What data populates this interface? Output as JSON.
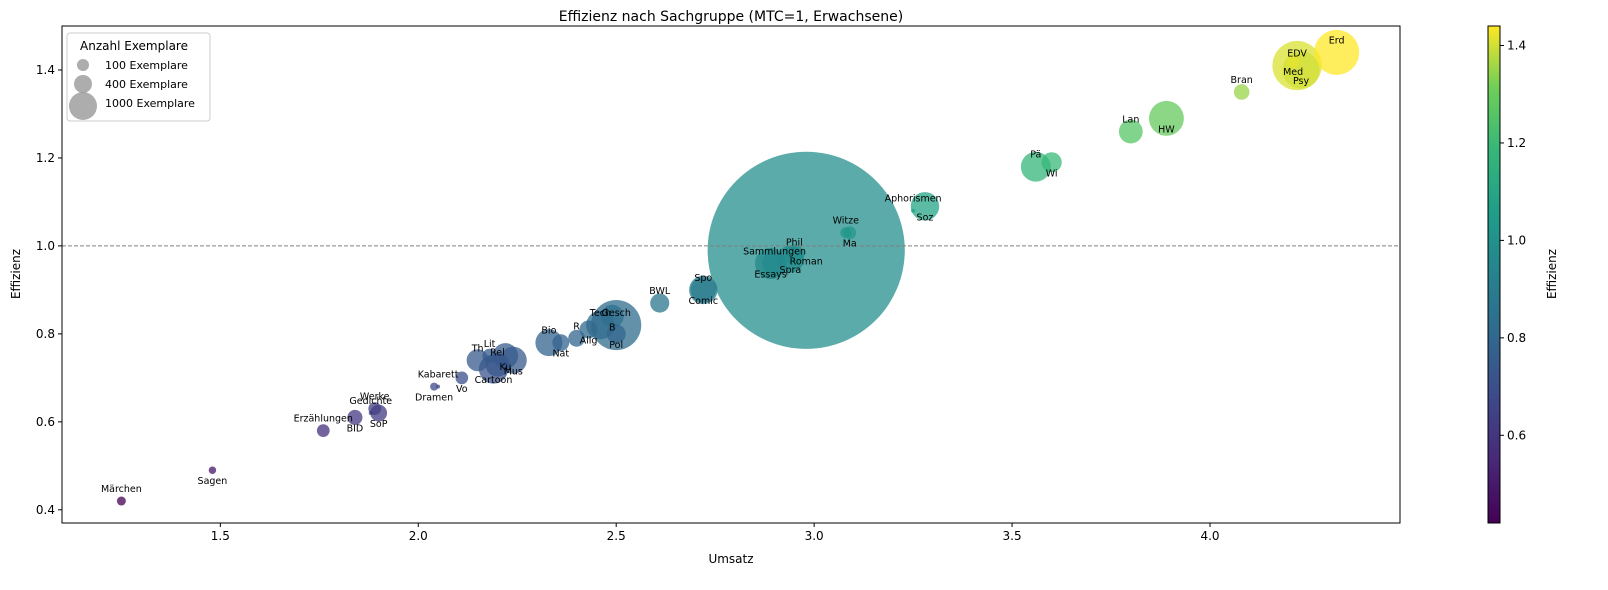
{
  "chart_data": {
    "type": "scatter",
    "title": "Effizienz nach Sachgruppe (MTC=1, Erwachsene)",
    "xlabel": "Umsatz",
    "ylabel": "Effizienz",
    "xlim": [
      1.1,
      4.48
    ],
    "ylim": [
      0.37,
      1.5
    ],
    "xticks": [
      "1.5",
      "2.0",
      "2.5",
      "3.0",
      "3.5",
      "4.0"
    ],
    "yticks": [
      "0.4",
      "0.6",
      "0.8",
      "1.0",
      "1.2",
      "1.4"
    ],
    "reference_line": {
      "y": 1.0,
      "style": "dashed",
      "color": "#808080"
    },
    "colorbar": {
      "label": "Effizienz",
      "range": [
        0.42,
        1.44
      ],
      "ticks": [
        "0.6",
        "0.8",
        "1.0",
        "1.2",
        "1.4"
      ],
      "colormap": "viridis"
    },
    "legend": {
      "title": "Anzahl Exemplare",
      "position": "top-left",
      "entries": [
        "100 Exemplare",
        "400 Exemplare",
        "1000 Exemplare"
      ]
    },
    "points": [
      {
        "label": "Märchen",
        "x": 1.25,
        "y": 0.42,
        "n": 100
      },
      {
        "label": "Sagen",
        "x": 1.48,
        "y": 0.49,
        "n": 70
      },
      {
        "label": "Erzählungen",
        "x": 1.76,
        "y": 0.58,
        "n": 200
      },
      {
        "label": "BID",
        "x": 1.84,
        "y": 0.61,
        "n": 280
      },
      {
        "label": "Werke",
        "x": 1.89,
        "y": 0.63,
        "n": 200
      },
      {
        "label": "SoP",
        "x": 1.9,
        "y": 0.62,
        "n": 350
      },
      {
        "label": "Gedichte",
        "x": 1.88,
        "y": 0.62,
        "n": 20
      },
      {
        "label": "Dramen",
        "x": 2.04,
        "y": 0.68,
        "n": 80
      },
      {
        "label": "Kabarett",
        "x": 2.05,
        "y": 0.68,
        "n": 20
      },
      {
        "label": "Vo",
        "x": 2.11,
        "y": 0.7,
        "n": 200
      },
      {
        "label": "Th",
        "x": 2.15,
        "y": 0.74,
        "n": 600
      },
      {
        "label": "Cartoon",
        "x": 2.19,
        "y": 0.72,
        "n": 1050
      },
      {
        "label": "Lit",
        "x": 2.18,
        "y": 0.75,
        "n": 250
      },
      {
        "label": "Ku",
        "x": 2.22,
        "y": 0.75,
        "n": 800
      },
      {
        "label": "Rel",
        "x": 2.2,
        "y": 0.73,
        "n": 700
      },
      {
        "label": "Mus",
        "x": 2.24,
        "y": 0.74,
        "n": 900
      },
      {
        "label": "Bio",
        "x": 2.33,
        "y": 0.78,
        "n": 900
      },
      {
        "label": "Nat",
        "x": 2.36,
        "y": 0.78,
        "n": 350
      },
      {
        "label": "R",
        "x": 2.4,
        "y": 0.79,
        "n": 350
      },
      {
        "label": "Allg",
        "x": 2.43,
        "y": 0.81,
        "n": 400
      },
      {
        "label": "Tech",
        "x": 2.46,
        "y": 0.82,
        "n": 1000
      },
      {
        "label": "B",
        "x": 2.49,
        "y": 0.84,
        "n": 650
      },
      {
        "label": "Gesch",
        "x": 2.5,
        "y": 0.82,
        "n": 3100
      },
      {
        "label": "Pol",
        "x": 2.5,
        "y": 0.8,
        "n": 450
      },
      {
        "label": "BWL",
        "x": 2.61,
        "y": 0.87,
        "n": 450
      },
      {
        "label": "Comic",
        "x": 2.72,
        "y": 0.9,
        "n": 800
      },
      {
        "label": "Spo",
        "x": 2.72,
        "y": 0.9,
        "n": 1000
      },
      {
        "label": "Essays",
        "x": 2.89,
        "y": 0.96,
        "n": 1200
      },
      {
        "label": "Sammlungen",
        "x": 2.9,
        "y": 0.96,
        "n": 750
      },
      {
        "label": "Spra",
        "x": 2.94,
        "y": 0.97,
        "n": 900
      },
      {
        "label": "Phil",
        "x": 2.95,
        "y": 0.98,
        "n": 500
      },
      {
        "label": "Roman",
        "x": 2.98,
        "y": 0.99,
        "n": 48000
      },
      {
        "label": "Witze",
        "x": 3.08,
        "y": 1.03,
        "n": 150
      },
      {
        "label": "Ma",
        "x": 3.09,
        "y": 1.03,
        "n": 200
      },
      {
        "label": "Aphorismen",
        "x": 3.25,
        "y": 1.08,
        "n": 20
      },
      {
        "label": "Soz",
        "x": 3.28,
        "y": 1.09,
        "n": 1000
      },
      {
        "label": "Pä",
        "x": 3.56,
        "y": 1.18,
        "n": 1100
      },
      {
        "label": "Wi",
        "x": 3.6,
        "y": 1.19,
        "n": 500
      },
      {
        "label": "Lan",
        "x": 3.8,
        "y": 1.26,
        "n": 700
      },
      {
        "label": "HW",
        "x": 3.89,
        "y": 1.29,
        "n": 1500
      },
      {
        "label": "Bran",
        "x": 4.08,
        "y": 1.35,
        "n": 300
      },
      {
        "label": "Med",
        "x": 4.21,
        "y": 1.42,
        "n": 200
      },
      {
        "label": "EDV",
        "x": 4.22,
        "y": 1.41,
        "n": 3000
      },
      {
        "label": "Psy",
        "x": 4.23,
        "y": 1.4,
        "n": 1700
      },
      {
        "label": "Erd",
        "x": 4.32,
        "y": 1.44,
        "n": 2500
      }
    ]
  }
}
